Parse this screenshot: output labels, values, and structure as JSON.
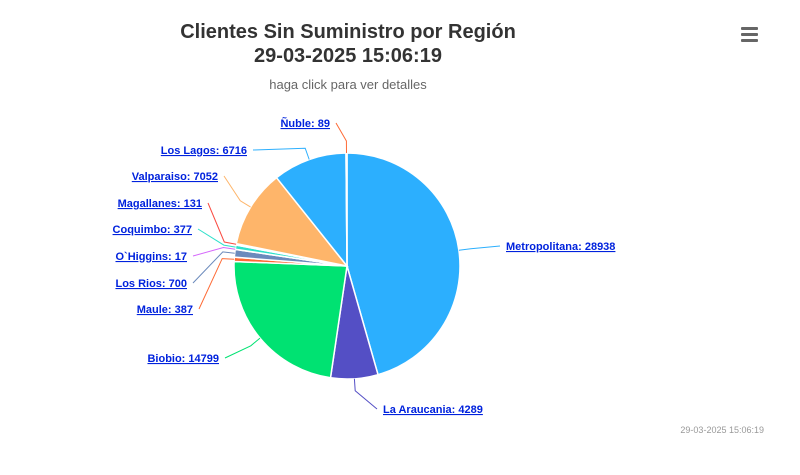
{
  "header": {
    "title": "Clientes Sin Suministro por Región",
    "datetime": "29-03-2025 15:06:19",
    "subtitle": "haga click para ver detalles"
  },
  "footer": {
    "timestamp": "29-03-2025 15:06:19"
  },
  "menu": {
    "icon": "hamburger-menu-icon"
  },
  "chart_data": {
    "type": "pie",
    "title": "Clientes Sin Suministro por Región",
    "subtitle": "haga click para ver detalles",
    "slices": [
      {
        "name": "Metropolitana",
        "value": 28938,
        "label": "Metropolitana: 28938",
        "color": "#2caffe"
      },
      {
        "name": "La Araucania",
        "value": 4289,
        "label": "La Araucania: 4289",
        "color": "#544fc5"
      },
      {
        "name": "Biobio",
        "value": 14799,
        "label": "Biobio: 14799",
        "color": "#00e272"
      },
      {
        "name": "Maule",
        "value": 387,
        "label": "Maule: 387",
        "color": "#fe6a35"
      },
      {
        "name": "Los Rios",
        "value": 700,
        "label": "Los Rios: 700",
        "color": "#6b8abc"
      },
      {
        "name": "O`Higgins",
        "value": 17,
        "label": "O`Higgins: 17",
        "color": "#d568fb"
      },
      {
        "name": "Coquimbo",
        "value": 377,
        "label": "Coquimbo: 377",
        "color": "#2ee0ca"
      },
      {
        "name": "Magallanes",
        "value": 131,
        "label": "Magallanes: 131",
        "color": "#fa4b42"
      },
      {
        "name": "Valparaiso",
        "value": 7052,
        "label": "Valparaiso: 7052",
        "color": "#feb56a"
      },
      {
        "name": "Los Lagos",
        "value": 6716,
        "label": "Los Lagos: 6716",
        "color": "#2caffe"
      },
      {
        "name": "Ñuble",
        "value": 89,
        "label": "Ñuble: 89",
        "color": "#fe6a35"
      }
    ]
  }
}
